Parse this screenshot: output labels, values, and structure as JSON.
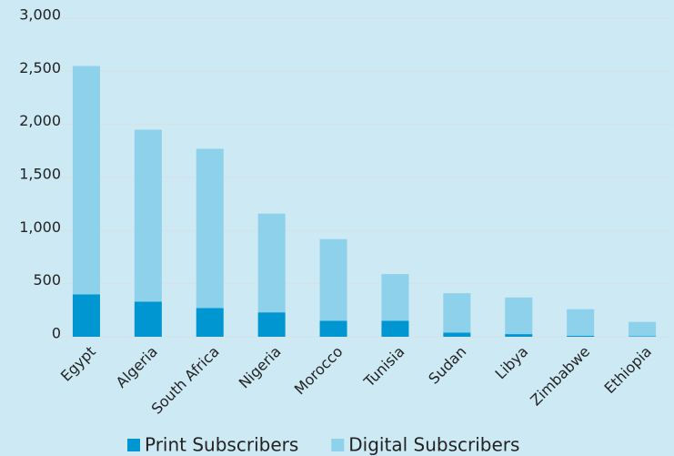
{
  "chart_data": {
    "type": "stacked_bar",
    "categories": [
      "Egypt",
      "Algeria",
      "South Africa",
      "Nigeria",
      "Morocco",
      "Tunisia",
      "Sudan",
      "Libya",
      "Zimbabwe",
      "Ethiopia"
    ],
    "series": [
      {
        "name": "Print Subscribers",
        "color": "#0096d1",
        "values": [
          400,
          330,
          270,
          230,
          150,
          150,
          40,
          25,
          10,
          5
        ]
      },
      {
        "name": "Digital Subscribers",
        "color": "#8dd1ea",
        "values": [
          2150,
          1620,
          1500,
          930,
          770,
          440,
          370,
          345,
          250,
          135
        ]
      }
    ],
    "ylim": [
      0,
      3000
    ],
    "yticks": [
      0,
      500,
      {
        "value": 1000,
        "label": "1,000"
      },
      {
        "value": 1500,
        "label": "1,500"
      },
      {
        "value": 2000,
        "label": "2,000"
      },
      {
        "value": 2500,
        "label": "2,500"
      },
      {
        "value": 3000,
        "label": "3,000"
      }
    ],
    "grid": true,
    "legend": "bottom"
  }
}
